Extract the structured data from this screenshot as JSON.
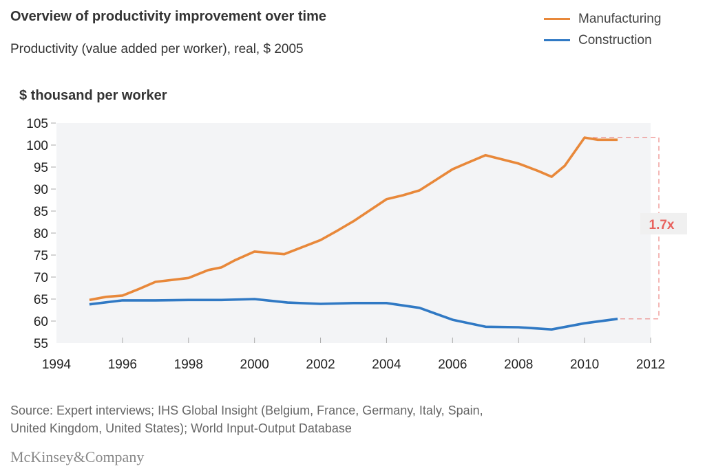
{
  "header": {
    "title": "Overview of productivity improvement over time",
    "subtitle": "Productivity (value added per worker), real, $ 2005"
  },
  "colors": {
    "manufacturing": "#E8883A",
    "construction": "#3079C4",
    "annotation": "#E8625E",
    "plot_background": "#F3F4F6",
    "tick": "#AAAAAA"
  },
  "annotation": {
    "label": "1.7x"
  },
  "footer": {
    "source_line1": "Source: Expert interviews; IHS Global Insight (Belgium, France, Germany, Italy, Spain,",
    "source_line2": "United Kingdom, United States); World Input-Output Database",
    "brand": "McKinsey&Company"
  },
  "chart_data": {
    "type": "line",
    "title": "Overview of productivity improvement over time",
    "subtitle": "Productivity (value added per worker), real, $ 2005",
    "xlabel": "",
    "ylabel": "$ thousand per worker",
    "xlim": [
      1994,
      2012
    ],
    "ylim": [
      55,
      105
    ],
    "x_ticks": [
      1994,
      1996,
      1998,
      2000,
      2002,
      2004,
      2006,
      2008,
      2010,
      2012
    ],
    "y_ticks": [
      55,
      60,
      65,
      70,
      75,
      80,
      85,
      90,
      95,
      100,
      105
    ],
    "grid": false,
    "legend_position": "top-right",
    "series": [
      {
        "name": "Manufacturing",
        "color": "#E8883A",
        "points": [
          [
            1995,
            64.8
          ],
          [
            1995.5,
            65.5
          ],
          [
            1996,
            65.8
          ],
          [
            1996.5,
            67.3
          ],
          [
            1997,
            68.9
          ],
          [
            1998,
            69.8
          ],
          [
            1998.6,
            71.6
          ],
          [
            1999,
            72.2
          ],
          [
            1999.4,
            73.8
          ],
          [
            2000,
            75.8
          ],
          [
            2000.9,
            75.2
          ],
          [
            2002,
            78.4
          ],
          [
            2002.5,
            80.5
          ],
          [
            2003,
            82.7
          ],
          [
            2004,
            87.7
          ],
          [
            2004.5,
            88.6
          ],
          [
            2005,
            89.7
          ],
          [
            2006,
            94.5
          ],
          [
            2006.4,
            95.8
          ],
          [
            2007,
            97.7
          ],
          [
            2008,
            95.8
          ],
          [
            2008.6,
            94.1
          ],
          [
            2009,
            92.8
          ],
          [
            2009.4,
            95.3
          ],
          [
            2010,
            101.7
          ],
          [
            2010.4,
            101.2
          ],
          [
            2011,
            101.2
          ]
        ]
      },
      {
        "name": "Construction",
        "color": "#3079C4",
        "points": [
          [
            1995,
            63.8
          ],
          [
            1996,
            64.7
          ],
          [
            1997,
            64.7
          ],
          [
            1998,
            64.8
          ],
          [
            1999,
            64.8
          ],
          [
            2000,
            65.0
          ],
          [
            2001,
            64.2
          ],
          [
            2002,
            63.9
          ],
          [
            2003,
            64.1
          ],
          [
            2004,
            64.1
          ],
          [
            2005,
            63.0
          ],
          [
            2006,
            60.3
          ],
          [
            2007,
            58.7
          ],
          [
            2008,
            58.6
          ],
          [
            2009,
            58.1
          ],
          [
            2010,
            59.5
          ],
          [
            2011,
            60.5
          ]
        ]
      }
    ],
    "annotations": [
      {
        "text": "1.7x",
        "from_value": 60.5,
        "to_value": 101.7,
        "type": "bracket-ratio"
      }
    ]
  }
}
